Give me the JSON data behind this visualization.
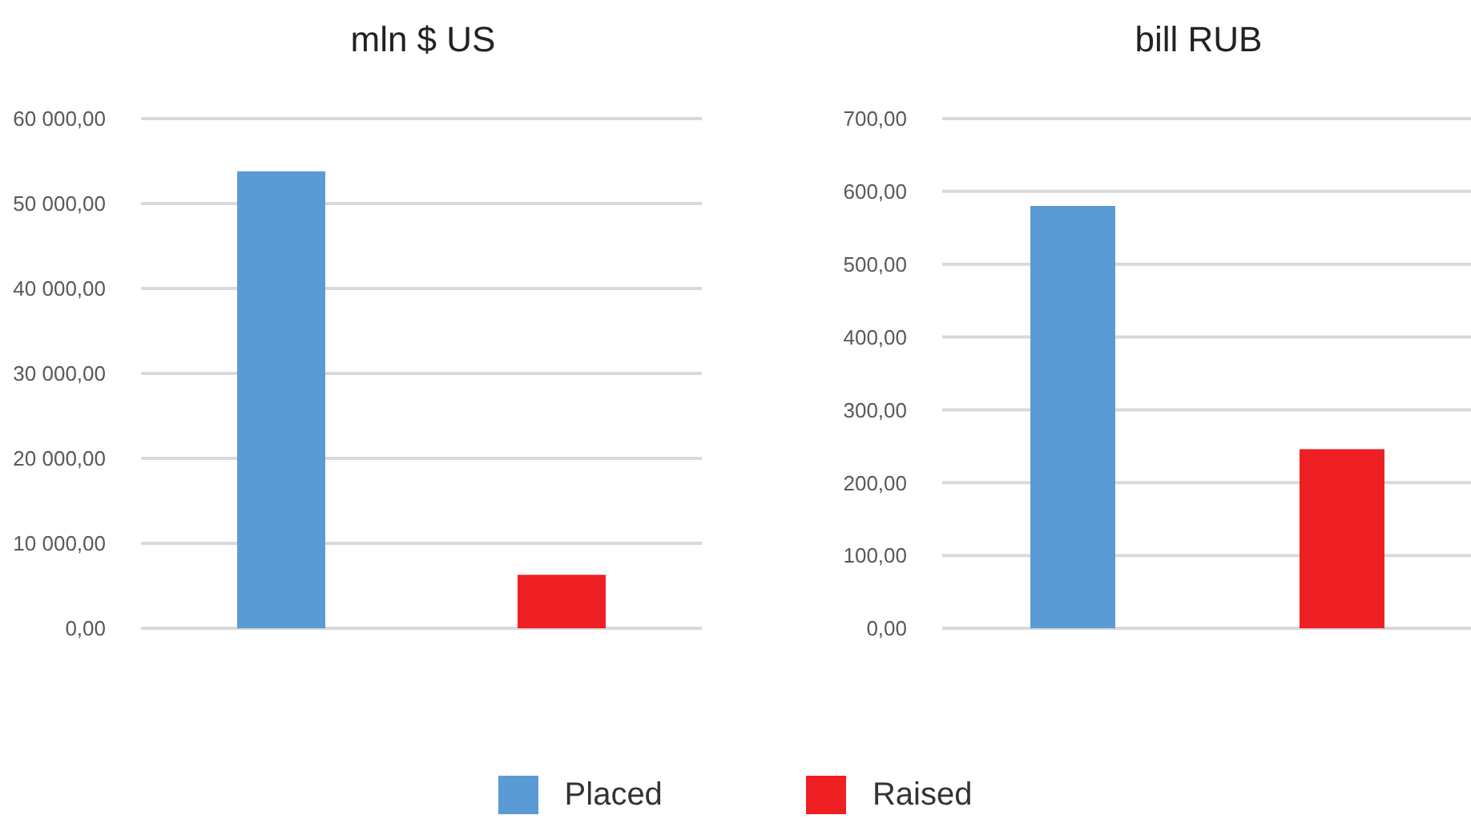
{
  "chart_data": [
    {
      "type": "bar",
      "title": "mln $ US",
      "categories": [
        null
      ],
      "series": [
        {
          "name": "Placed",
          "color": "#5b9bd5",
          "values": [
            53800
          ]
        },
        {
          "name": "Raised",
          "color": "#ee2024",
          "values": [
            6300
          ]
        }
      ],
      "ylim": [
        0,
        60000
      ],
      "yticks": [
        {
          "value": 0,
          "label": "0,00"
        },
        {
          "value": 10000,
          "label": "10 000,00"
        },
        {
          "value": 20000,
          "label": "20 000,00"
        },
        {
          "value": 30000,
          "label": "30 000,00"
        },
        {
          "value": 40000,
          "label": "40 000,00"
        },
        {
          "value": 50000,
          "label": "50 000,00"
        },
        {
          "value": 60000,
          "label": "60 000,00"
        }
      ],
      "grid": "y",
      "legend": "bottom"
    },
    {
      "type": "bar",
      "title": "bill RUB",
      "categories": [
        null
      ],
      "series": [
        {
          "color": "#5b9bd5",
          "values": [
            580
          ]
        },
        {
          "color": "#ee2024",
          "values": [
            246
          ]
        }
      ],
      "ylim": [
        0,
        700
      ],
      "yticks": [
        {
          "value": 0,
          "label": "0,00"
        },
        {
          "value": 100,
          "label": "100,00"
        },
        {
          "value": 200,
          "label": "200,00"
        },
        {
          "value": 300,
          "label": "300,00"
        },
        {
          "value": 400,
          "label": "400,00"
        },
        {
          "value": 500,
          "label": "500,00"
        },
        {
          "value": 600,
          "label": "600,00"
        },
        {
          "value": 700,
          "label": "700,00"
        }
      ],
      "grid": "y"
    }
  ]
}
